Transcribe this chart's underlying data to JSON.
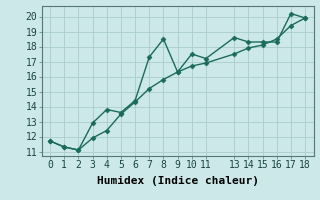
{
  "xlabel": "Humidex (Indice chaleur)",
  "x_data": [
    0,
    1,
    2,
    3,
    4,
    5,
    6,
    7,
    8,
    9,
    10,
    11,
    13,
    14,
    15,
    16,
    17,
    18
  ],
  "line1_y": [
    11.7,
    11.3,
    11.1,
    12.9,
    13.8,
    13.6,
    14.4,
    17.3,
    18.5,
    16.3,
    17.5,
    17.2,
    18.6,
    18.3,
    18.3,
    18.3,
    20.2,
    19.9
  ],
  "line2_y": [
    11.7,
    11.3,
    11.1,
    11.9,
    12.4,
    13.5,
    14.3,
    15.2,
    15.8,
    16.3,
    16.7,
    16.9,
    17.5,
    17.9,
    18.1,
    18.5,
    19.4,
    19.9
  ],
  "line_color": "#1a6b5a",
  "bg_color": "#cce8e8",
  "grid_color": "#aacccc",
  "ylim": [
    10.7,
    20.7
  ],
  "xlim": [
    -0.6,
    18.6
  ],
  "yticks": [
    11,
    12,
    13,
    14,
    15,
    16,
    17,
    18,
    19,
    20
  ],
  "xticks": [
    0,
    1,
    2,
    3,
    4,
    5,
    6,
    7,
    8,
    9,
    10,
    11,
    13,
    14,
    15,
    16,
    17,
    18
  ],
  "marker": "D",
  "marker_size": 2.5,
  "line_width": 1.0,
  "tick_fontsize": 7,
  "xlabel_fontsize": 8
}
